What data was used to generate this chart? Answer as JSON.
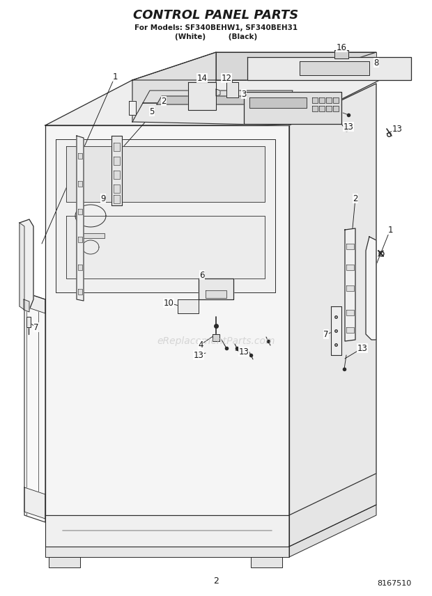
{
  "title": "CONTROL PANEL PARTS",
  "subtitle_line1": "For Models: SF340BEHW1, SF340BEH31",
  "subtitle_line2": "(White)         (Black)",
  "page_number": "2",
  "doc_number": "8167510",
  "bg": "#ffffff",
  "lc": "#2a2a2a",
  "tc": "#1a1a1a",
  "wm_text": "eReplacementParts.com",
  "wm_color": "#c8c8c8"
}
